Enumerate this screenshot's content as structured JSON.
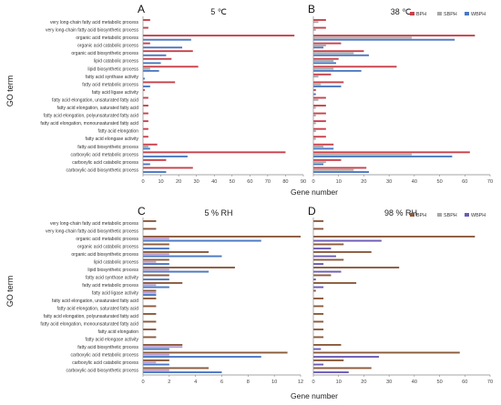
{
  "terms": [
    "very long-chain fatty acid metabolic process",
    "very long-chain fatty acid biosynthetic process",
    "organic acid metabolic process",
    "organic acid catabolic process",
    "organic acid biosynthetic process",
    "lipid catabolic process",
    "lipid biosynthetic process",
    "fatty acid synthase activity",
    "fatty acid metabolic process",
    "fatty acid ligase activity",
    "fatty acid elongation, unsaturated fatty acid",
    "fatty acid elongation, saturated fatty acid",
    "fatty acid elongation, polyunsaturated fatty acid",
    "fatty acid elongation, monounsaturated fatty acid",
    "fatty acid elongation",
    "fatty acid elongase activity",
    "fatty acid biosynthetic process",
    "carboxylic acid metabolic process",
    "carboxylic acid catabolic process",
    "carboxylic acid biosynthetic process"
  ],
  "ylabel_top": "GO term",
  "ylabel_bottom": "GO term",
  "xlabel_top": "Gene number",
  "xlabel_bottom": "Gene number",
  "chart_data": [
    {
      "type": "bar",
      "letter": "A",
      "title": "5 ℃",
      "xlim": [
        0,
        90
      ],
      "xticks": [
        0,
        10,
        20,
        30,
        40,
        50,
        60,
        70,
        80,
        90
      ],
      "show_legend": false,
      "series": [
        {
          "name": "BPH",
          "color": "#c8414b",
          "values": [
            4,
            3,
            85,
            4,
            28,
            16,
            31,
            0,
            18,
            1,
            3,
            3,
            3,
            3,
            3,
            3,
            8,
            80,
            13,
            28
          ]
        },
        {
          "name": "SBPH",
          "color": "#a8a8a8",
          "values": [
            0,
            0,
            0,
            0,
            0,
            0,
            4,
            0,
            0,
            0,
            0,
            0,
            0,
            0,
            0,
            0,
            3,
            0,
            0,
            0
          ]
        },
        {
          "name": "WBPH",
          "color": "#4a78c2",
          "values": [
            0,
            0,
            27,
            22,
            13,
            10,
            9,
            1,
            4,
            0,
            0,
            0,
            0,
            0,
            0,
            0,
            4,
            25,
            4,
            13
          ]
        }
      ]
    },
    {
      "type": "bar",
      "letter": "B",
      "title": "38 ℃",
      "xlim": [
        0,
        70
      ],
      "xticks": [
        0,
        10,
        20,
        30,
        40,
        50,
        60,
        70
      ],
      "show_legend": true,
      "series": [
        {
          "name": "BPH",
          "color": "#c8414b",
          "values": [
            5,
            5,
            64,
            11,
            20,
            10,
            33,
            7,
            12,
            1,
            5,
            5,
            5,
            5,
            5,
            5,
            8,
            62,
            11,
            21
          ]
        },
        {
          "name": "SBPH",
          "color": "#a8a8a8",
          "values": [
            2,
            1,
            39,
            5,
            16,
            8,
            8,
            2,
            3,
            0,
            2,
            1,
            1,
            1,
            1,
            1,
            4,
            39,
            5,
            16
          ]
        },
        {
          "name": "WBPH",
          "color": "#4a78c2",
          "values": [
            0,
            0,
            56,
            4,
            22,
            9,
            19,
            0,
            11,
            1,
            0,
            0,
            0,
            0,
            0,
            0,
            8,
            55,
            4,
            22
          ]
        }
      ]
    },
    {
      "type": "bar",
      "letter": "C",
      "title": "5 % RH",
      "xlim": [
        0,
        12
      ],
      "xticks": [
        0,
        2,
        4,
        6,
        8,
        10,
        12
      ],
      "show_legend": false,
      "series": [
        {
          "name": "BPH",
          "color": "#8b5a3c",
          "values": [
            1,
            1,
            12,
            2,
            5,
            2,
            7,
            2,
            3,
            1,
            1,
            1,
            1,
            1,
            1,
            1,
            3,
            11,
            2,
            5
          ]
        },
        {
          "name": "SBPH",
          "color": "#b89ad0",
          "values": [
            0,
            0,
            2,
            0,
            2,
            1,
            2,
            0,
            1,
            1,
            0,
            0,
            0,
            0,
            0,
            0,
            3,
            2,
            1,
            2
          ]
        },
        {
          "name": "WBPH",
          "color": "#4a78c2",
          "values": [
            0,
            0,
            9,
            2,
            6,
            2,
            5,
            2,
            2,
            1,
            0,
            0,
            0,
            0,
            0,
            0,
            2,
            9,
            2,
            6
          ]
        }
      ]
    },
    {
      "type": "bar",
      "letter": "D",
      "title": "98 % RH",
      "xlim": [
        0,
        70
      ],
      "xticks": [
        0,
        10,
        20,
        30,
        40,
        50,
        60,
        70
      ],
      "show_legend": true,
      "series": [
        {
          "name": "BPH",
          "color": "#8b5a3c",
          "values": [
            4,
            4,
            64,
            12,
            23,
            12,
            34,
            7,
            17,
            1,
            4,
            4,
            4,
            4,
            4,
            4,
            11,
            58,
            12,
            23
          ]
        },
        {
          "name": "SBPH",
          "color": "#a8a8a8",
          "values": [
            0,
            0,
            0,
            0,
            0,
            0,
            0,
            0,
            0,
            0,
            0,
            0,
            0,
            0,
            0,
            0,
            0,
            0,
            0,
            0
          ]
        },
        {
          "name": "WBPH",
          "color": "#6b5bb5",
          "values": [
            0,
            0,
            27,
            7,
            9,
            4,
            11,
            1,
            4,
            0,
            0,
            0,
            0,
            0,
            0,
            0,
            3,
            26,
            4,
            14
          ]
        }
      ]
    }
  ]
}
